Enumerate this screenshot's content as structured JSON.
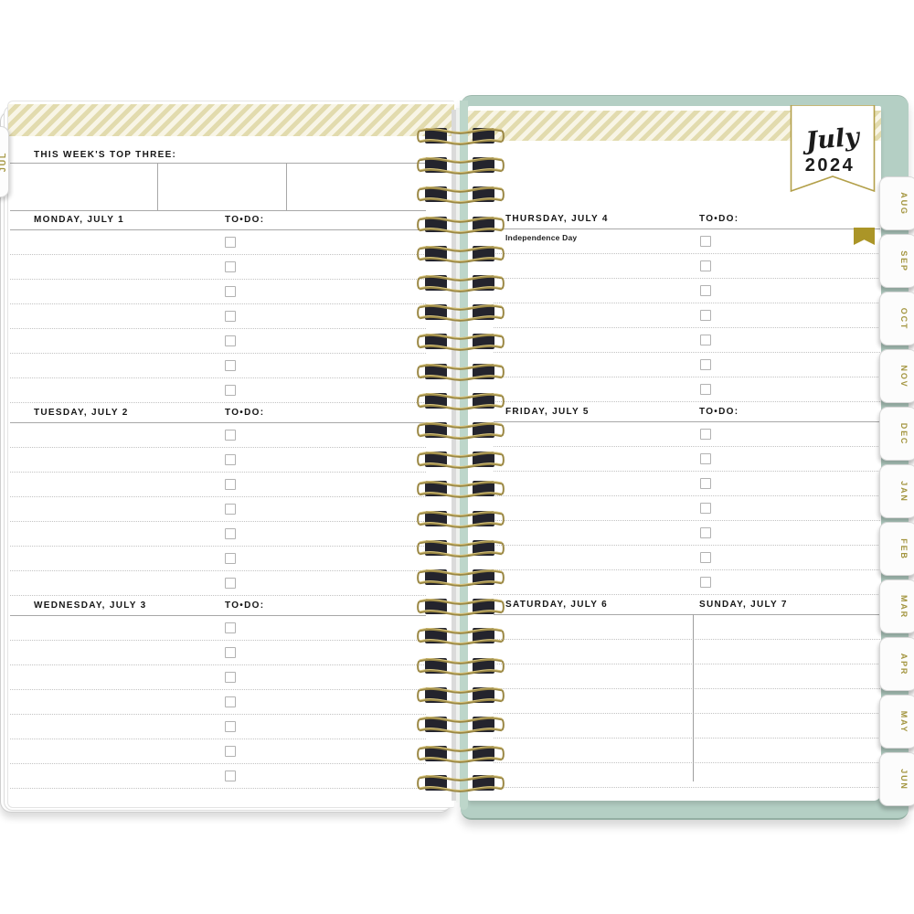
{
  "planner": {
    "banner": {
      "month": "July",
      "year": "2024"
    },
    "left_tab": "JUL",
    "month_tabs": [
      "AUG",
      "SEP",
      "OCT",
      "NOV",
      "DEC",
      "JAN",
      "FEB",
      "MAR",
      "APR",
      "MAY",
      "JUN"
    ],
    "left_page": {
      "top_three_label": "THIS WEEK'S TOP THREE:",
      "days": [
        {
          "name": "MONDAY, JULY 1",
          "todo_label": "TO•DO:",
          "todo_rows": 7
        },
        {
          "name": "TUESDAY, JULY 2",
          "todo_label": "TO•DO:",
          "todo_rows": 7
        },
        {
          "name": "WEDNESDAY, JULY 3",
          "todo_label": "TO•DO:",
          "todo_rows": 7
        }
      ]
    },
    "right_page": {
      "days": [
        {
          "name": "THURSDAY, JULY 4",
          "todo_label": "TO•DO:",
          "todo_rows": 7,
          "note": "Independence Day"
        },
        {
          "name": "FRIDAY, JULY 5",
          "todo_label": "TO•DO:",
          "todo_rows": 7
        }
      ],
      "weekend": {
        "left_name": "SATURDAY, JULY 6",
        "right_name": "SUNDAY, JULY 7",
        "rows": 7
      }
    },
    "colors": {
      "cover_teal": "#b4cfc4",
      "stripe_gold": "#e2dbae",
      "stripe_cream": "#f8f5e6",
      "banner_border_gold": "#b3a04a",
      "ribbon_gold": "#ab9527",
      "tab_text_gold": "#a3953f",
      "coil_wire_gold": "#9a8743",
      "coil_block_dark": "#24242d"
    }
  }
}
